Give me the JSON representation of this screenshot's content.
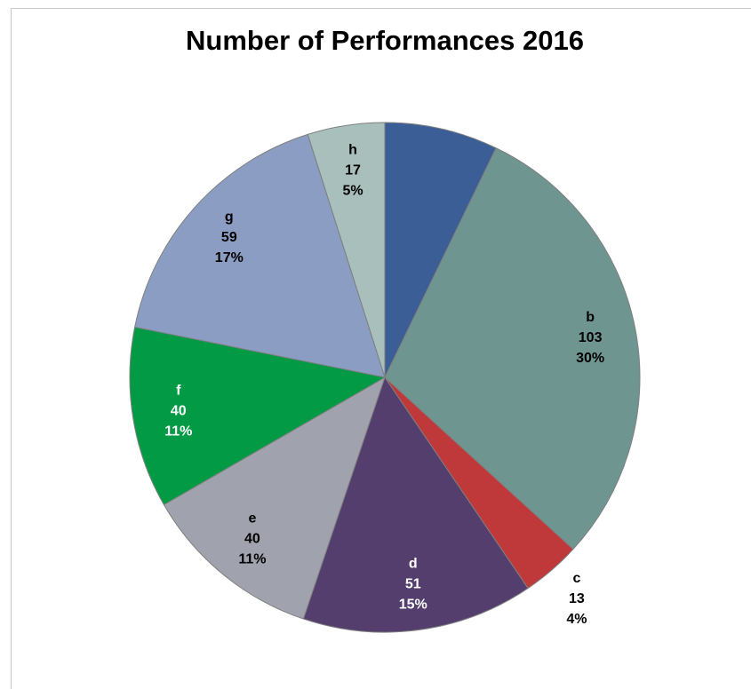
{
  "chart_data": {
    "type": "pie",
    "title": "Number of Performances 2016",
    "categories": [
      null,
      "b",
      "c",
      "d",
      "e",
      "f",
      "g",
      "h"
    ],
    "values": [
      25,
      103,
      13,
      51,
      40,
      40,
      59,
      17
    ],
    "percent_labels": [
      null,
      "30%",
      "4%",
      "15%",
      "11%",
      "11%",
      "17%",
      "5%"
    ],
    "colors": [
      "#3b5e96",
      "#6f9590",
      "#c0393a",
      "#533e6d",
      "#a0a2ae",
      "#039a45",
      "#8b9dc3",
      "#a8bfbb"
    ]
  }
}
